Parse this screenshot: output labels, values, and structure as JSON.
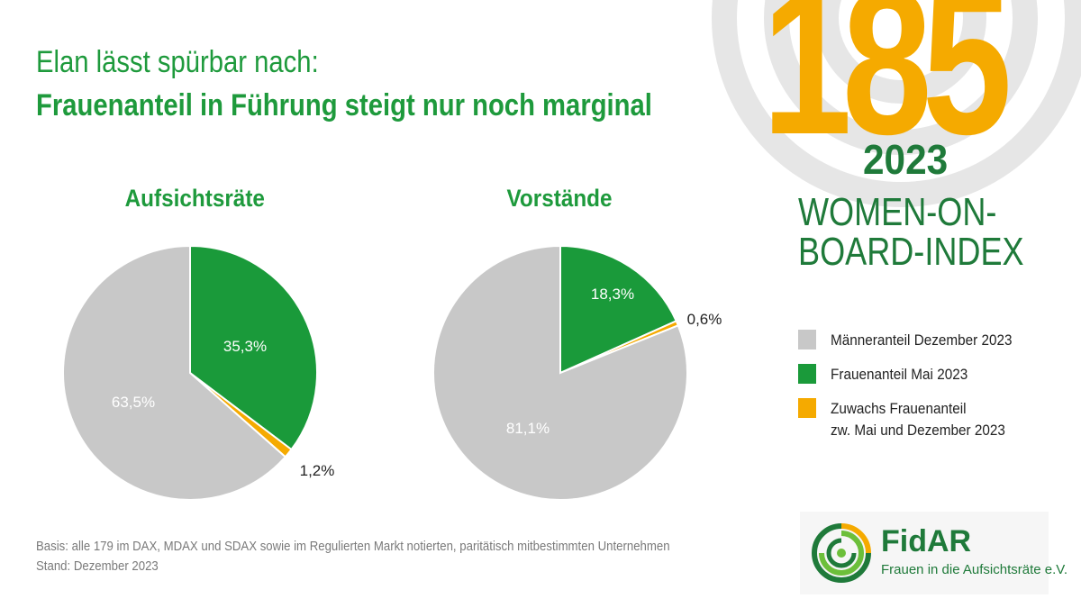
{
  "header": {
    "title_line1": "Elan lässt spürbar nach:",
    "title_line2": "Frauenanteil in Führung steigt nur noch marginal"
  },
  "brand": {
    "number": "185",
    "year": "2023",
    "name_line1": "WOMEN-ON-",
    "name_line2": "BOARD-INDEX"
  },
  "colors": {
    "green": "#1a9a3a",
    "gray": "#c8c8c8",
    "orange": "#f5aa00",
    "title_green": "#1e9a3c"
  },
  "chart_data": [
    {
      "type": "pie",
      "title": "Aufsichtsräte",
      "slices": [
        {
          "label": "Frauenanteil Mai 2023",
          "value": 35.3,
          "text": "35,3%",
          "color": "#1a9a3a"
        },
        {
          "label": "Zuwachs Frauenanteil zw. Mai und Dezember 2023",
          "value": 1.2,
          "text": "1,2%",
          "color": "#f5aa00"
        },
        {
          "label": "Männeranteil Dezember 2023",
          "value": 63.5,
          "text": "63,5%",
          "color": "#c8c8c8"
        }
      ]
    },
    {
      "type": "pie",
      "title": "Vorstände",
      "slices": [
        {
          "label": "Frauenanteil Mai 2023",
          "value": 18.3,
          "text": "18,3%",
          "color": "#1a9a3a"
        },
        {
          "label": "Zuwachs Frauenanteil zw. Mai und Dezember 2023",
          "value": 0.6,
          "text": "0,6%",
          "color": "#f5aa00"
        },
        {
          "label": "Männeranteil Dezember 2023",
          "value": 81.1,
          "text": "81,1%",
          "color": "#c8c8c8"
        }
      ]
    }
  ],
  "legend": [
    {
      "line1": "Männeranteil Dezember 2023",
      "line2": "",
      "color": "#c8c8c8"
    },
    {
      "line1": "Frauenanteil Mai 2023",
      "line2": "",
      "color": "#1a9a3a"
    },
    {
      "line1": "Zuwachs Frauenanteil",
      "line2": "zw. Mai und Dezember 2023",
      "color": "#f5aa00"
    }
  ],
  "footer": {
    "basis": "Basis: alle 179 im DAX, MDAX und SDAX sowie im Regulierten Markt notierten, paritätisch mitbestimmten Unternehmen",
    "stand": "Stand: Dezember 2023"
  },
  "logo": {
    "word": "FidAR",
    "subtitle": "Frauen in die Aufsichtsräte e.V."
  }
}
